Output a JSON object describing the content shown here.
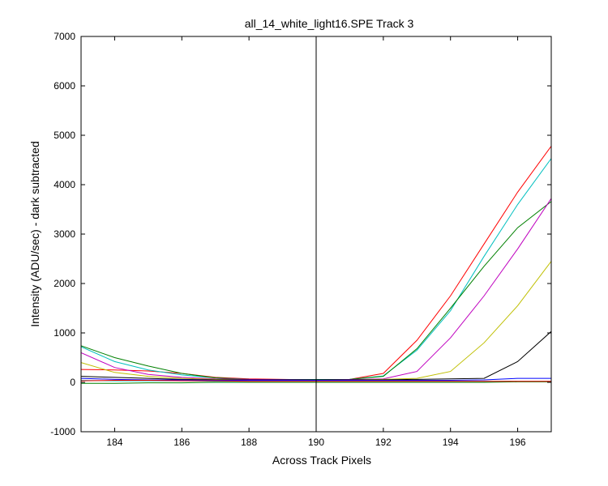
{
  "chart_data": {
    "type": "line",
    "title": "all_14_white_light16.SPE   Track 3",
    "xlabel": "Across Track Pixels",
    "ylabel": "Intensity (ADU/sec) - dark subtracted",
    "xlim": [
      183,
      197
    ],
    "ylim": [
      -1000,
      7000
    ],
    "x_ticks": [
      184,
      186,
      188,
      190,
      192,
      194,
      196
    ],
    "y_ticks": [
      -1000,
      0,
      1000,
      2000,
      3000,
      4000,
      5000,
      6000,
      7000
    ],
    "grid": false,
    "vertical_marker_x": 190,
    "x": [
      183,
      184,
      185,
      186,
      187,
      188,
      189,
      190,
      191,
      192,
      193,
      194,
      195,
      196,
      197
    ],
    "series": [
      {
        "color": "#ff0000",
        "values": [
          260,
          250,
          230,
          180,
          100,
          70,
          60,
          50,
          60,
          180,
          850,
          1750,
          2800,
          3850,
          4780
        ]
      },
      {
        "color": "#00bfbf",
        "values": [
          720,
          420,
          250,
          150,
          90,
          60,
          55,
          55,
          60,
          130,
          650,
          1450,
          2550,
          3600,
          4530
        ]
      },
      {
        "color": "#008000",
        "values": [
          740,
          500,
          330,
          180,
          90,
          60,
          55,
          55,
          60,
          120,
          680,
          1500,
          2350,
          3130,
          3660
        ]
      },
      {
        "color": "#bf00bf",
        "values": [
          600,
          300,
          160,
          100,
          70,
          60,
          55,
          50,
          55,
          70,
          220,
          900,
          1750,
          2700,
          3720
        ]
      },
      {
        "color": "#bfbf00",
        "values": [
          400,
          200,
          120,
          80,
          60,
          50,
          50,
          50,
          50,
          60,
          80,
          220,
          800,
          1550,
          2450
        ]
      },
      {
        "color": "#000000",
        "values": [
          120,
          100,
          80,
          60,
          50,
          50,
          50,
          50,
          50,
          50,
          60,
          70,
          80,
          420,
          1030
        ]
      },
      {
        "color": "#0000ff",
        "values": [
          80,
          60,
          50,
          50,
          40,
          40,
          40,
          40,
          40,
          40,
          40,
          40,
          50,
          80,
          80
        ]
      },
      {
        "color": "#00bfbf",
        "values": [
          40,
          30,
          30,
          30,
          20,
          20,
          20,
          20,
          20,
          20,
          20,
          20,
          20,
          20,
          20
        ]
      },
      {
        "color": "#008000",
        "values": [
          -20,
          -20,
          -10,
          -10,
          0,
          0,
          0,
          0,
          0,
          0,
          0,
          0,
          0,
          10,
          10
        ]
      },
      {
        "color": "#ff0000",
        "values": [
          30,
          40,
          40,
          30,
          30,
          20,
          20,
          20,
          20,
          20,
          20,
          20,
          20,
          20,
          20
        ]
      }
    ]
  }
}
